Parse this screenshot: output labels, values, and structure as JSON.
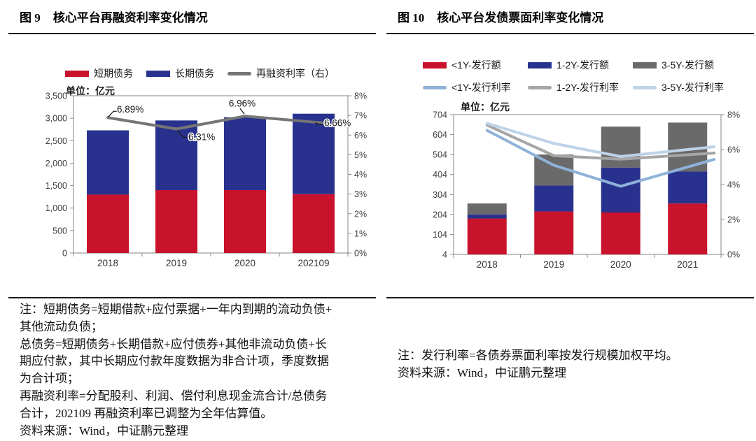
{
  "figures": [
    {
      "fig_label": "图 9",
      "title": "核心平台再融资利率变化情况",
      "unit_label": "单位：亿元",
      "legend": [
        {
          "label": "短期债务",
          "type": "bar",
          "color": "#C9122B"
        },
        {
          "label": "长期债务",
          "type": "bar",
          "color": "#28328E"
        },
        {
          "label": "再融资利率（右）",
          "type": "line",
          "color": "#757575"
        }
      ],
      "note_lines": [
        "注：短期债务=短期借款+应付票据+一年内到期的流动负债+",
        "其他流动负债；",
        "总债务=短期债务+长期借款+应付债券+其他非流动负债+长",
        "期应付款，其中长期应付款年度数据为非合计项，季度数据",
        "为合计项；",
        "再融资利率=分配股利、利润、偿付利息现金流合计/总债务",
        "合计，202109 再融资利率已调整为全年估算值。",
        "资料来源：Wind，中证鹏元整理"
      ]
    },
    {
      "fig_label": "图 10",
      "title": "核心平台发债票面利率变化情况",
      "unit_label": "单位：亿元",
      "legend": [
        {
          "label": "<1Y-发行额",
          "type": "bar",
          "color": "#C9122B"
        },
        {
          "label": "1-2Y-发行额",
          "type": "bar",
          "color": "#28328E"
        },
        {
          "label": "3-5Y-发行额",
          "type": "bar",
          "color": "#6A6A6A"
        },
        {
          "label": "<1Y-发行利率",
          "type": "line",
          "color": "#8FB2D9"
        },
        {
          "label": "1-2Y-发行利率",
          "type": "line",
          "color": "#A6A6A6"
        },
        {
          "label": "3-5Y-发行利率",
          "type": "line",
          "color": "#BDD3E8"
        }
      ],
      "note_lines": [
        "注：发行利率=各债券票面利率按发行规模加权平均。",
        "资料来源：Wind，中证鹏元整理"
      ]
    }
  ],
  "chart_data": [
    {
      "type": "stacked-bar+line",
      "title": "图 9 核心平台再融资利率变化情况",
      "unit": "亿元",
      "categories": [
        "2018",
        "2019",
        "2020",
        "202109"
      ],
      "bar_series": [
        {
          "name": "短期债务",
          "color": "#C9122B",
          "values": [
            1300,
            1400,
            1400,
            1310
          ]
        },
        {
          "name": "长期债务",
          "color": "#28328E",
          "values": [
            1430,
            1550,
            1620,
            1790
          ]
        }
      ],
      "line_series": [
        {
          "name": "再融资利率（右）",
          "color": "#757575",
          "axis": "right",
          "values": [
            6.89,
            6.31,
            6.96,
            6.66
          ],
          "point_labels": [
            "6.89%",
            "6.31%",
            "6.96%",
            "6.66%"
          ]
        }
      ],
      "left_axis": {
        "min": 0,
        "max": 3500,
        "tick_step": 500,
        "tick_labels": [
          "3,500",
          "3,000",
          "2,500",
          "2,000",
          "1,500",
          "1,000",
          "500",
          "0"
        ]
      },
      "right_axis": {
        "min": 0,
        "max": 8,
        "tick_step": 1,
        "tick_labels": [
          "8%",
          "7%",
          "6%",
          "5%",
          "4%",
          "3%",
          "2%",
          "1%",
          "0%"
        ]
      },
      "legend_position": "top",
      "grid": false
    },
    {
      "type": "stacked-bar+line",
      "title": "图 10 核心平台发债票面利率变化情况",
      "unit": "亿元",
      "categories": [
        "2018",
        "2019",
        "2020",
        "2021"
      ],
      "bar_series": [
        {
          "name": "<1Y-发行额",
          "color": "#C9122B",
          "values": [
            180,
            215,
            210,
            255
          ]
        },
        {
          "name": "1-2Y-发行额",
          "color": "#28328E",
          "values": [
            20,
            130,
            225,
            160
          ]
        },
        {
          "name": "3-5Y-发行额",
          "color": "#6A6A6A",
          "values": [
            55,
            155,
            205,
            245
          ]
        }
      ],
      "line_series": [
        {
          "name": "<1Y-发行利率",
          "color": "#8FB2D9",
          "axis": "right",
          "values": [
            7.1,
            5.1,
            3.9,
            5.0
          ]
        },
        {
          "name": "1-2Y-发行利率",
          "color": "#A6A6A6",
          "axis": "right",
          "values": [
            7.4,
            5.65,
            5.45,
            5.7
          ]
        },
        {
          "name": "3-5Y-发行利率",
          "color": "#BDD3E8",
          "axis": "right",
          "values": [
            7.5,
            6.35,
            5.6,
            6.0
          ]
        }
      ],
      "left_axis": {
        "min": 4,
        "max": 704,
        "tick_step": 100,
        "tick_labels": [
          "704",
          "604",
          "504",
          "404",
          "304",
          "204",
          "104",
          "4"
        ]
      },
      "right_axis": {
        "min": 0,
        "max": 8,
        "tick_step": 2,
        "tick_labels": [
          "8%",
          "6%",
          "4%",
          "2%",
          "0%"
        ]
      },
      "legend_position": "top",
      "grid": false
    }
  ]
}
